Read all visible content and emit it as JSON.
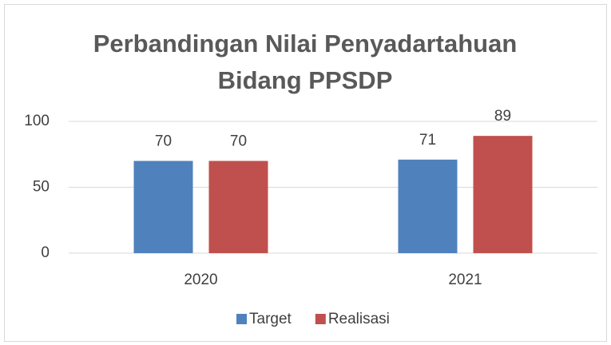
{
  "chart_data": {
    "type": "bar",
    "title": "Perbandingan Nilai Penyadartahuan Bidang PPSDP",
    "categories": [
      "2020",
      "2021"
    ],
    "series": [
      {
        "name": "Target",
        "color": "#4f81bd",
        "values": [
          70,
          71
        ]
      },
      {
        "name": "Realisasi",
        "color": "#c0504d",
        "values": [
          70,
          89
        ]
      }
    ],
    "ylim": [
      0,
      100
    ],
    "yticks": [
      0,
      50,
      100
    ],
    "grid": true,
    "legend": "bottom"
  }
}
